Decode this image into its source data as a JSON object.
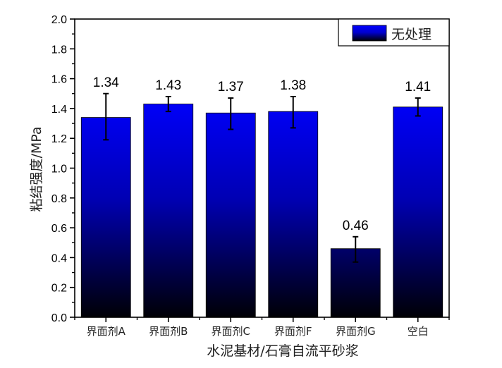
{
  "chart_data": {
    "type": "bar",
    "title": "",
    "xlabel": "水泥基材/石膏自流平砂浆",
    "ylabel": "粘结强度/MPa",
    "ylim": [
      0,
      2.0
    ],
    "yticks": [
      "0.0",
      "0.2",
      "0.4",
      "0.6",
      "0.8",
      "1.0",
      "1.2",
      "1.4",
      "1.6",
      "1.8",
      "2.0"
    ],
    "grid": false,
    "legend_position": "top-right",
    "categories": [
      "界面剂A",
      "界面剂B",
      "界面剂C",
      "界面剂F",
      "界面剂G",
      "空白"
    ],
    "series": [
      {
        "name": "无处理",
        "values": [
          1.34,
          1.43,
          1.37,
          1.38,
          0.46,
          1.41
        ],
        "value_labels": [
          "1.34",
          "1.43",
          "1.37",
          "1.38",
          "0.46",
          "1.41"
        ],
        "error_upper": [
          1.5,
          1.48,
          1.47,
          1.48,
          0.54,
          1.47
        ],
        "error_lower": [
          1.19,
          1.38,
          1.26,
          1.27,
          0.37,
          1.35
        ],
        "fill_gradient": {
          "top": "#0000ff",
          "bottom": "#000008"
        }
      }
    ]
  },
  "legend": {
    "label": "无处理"
  }
}
